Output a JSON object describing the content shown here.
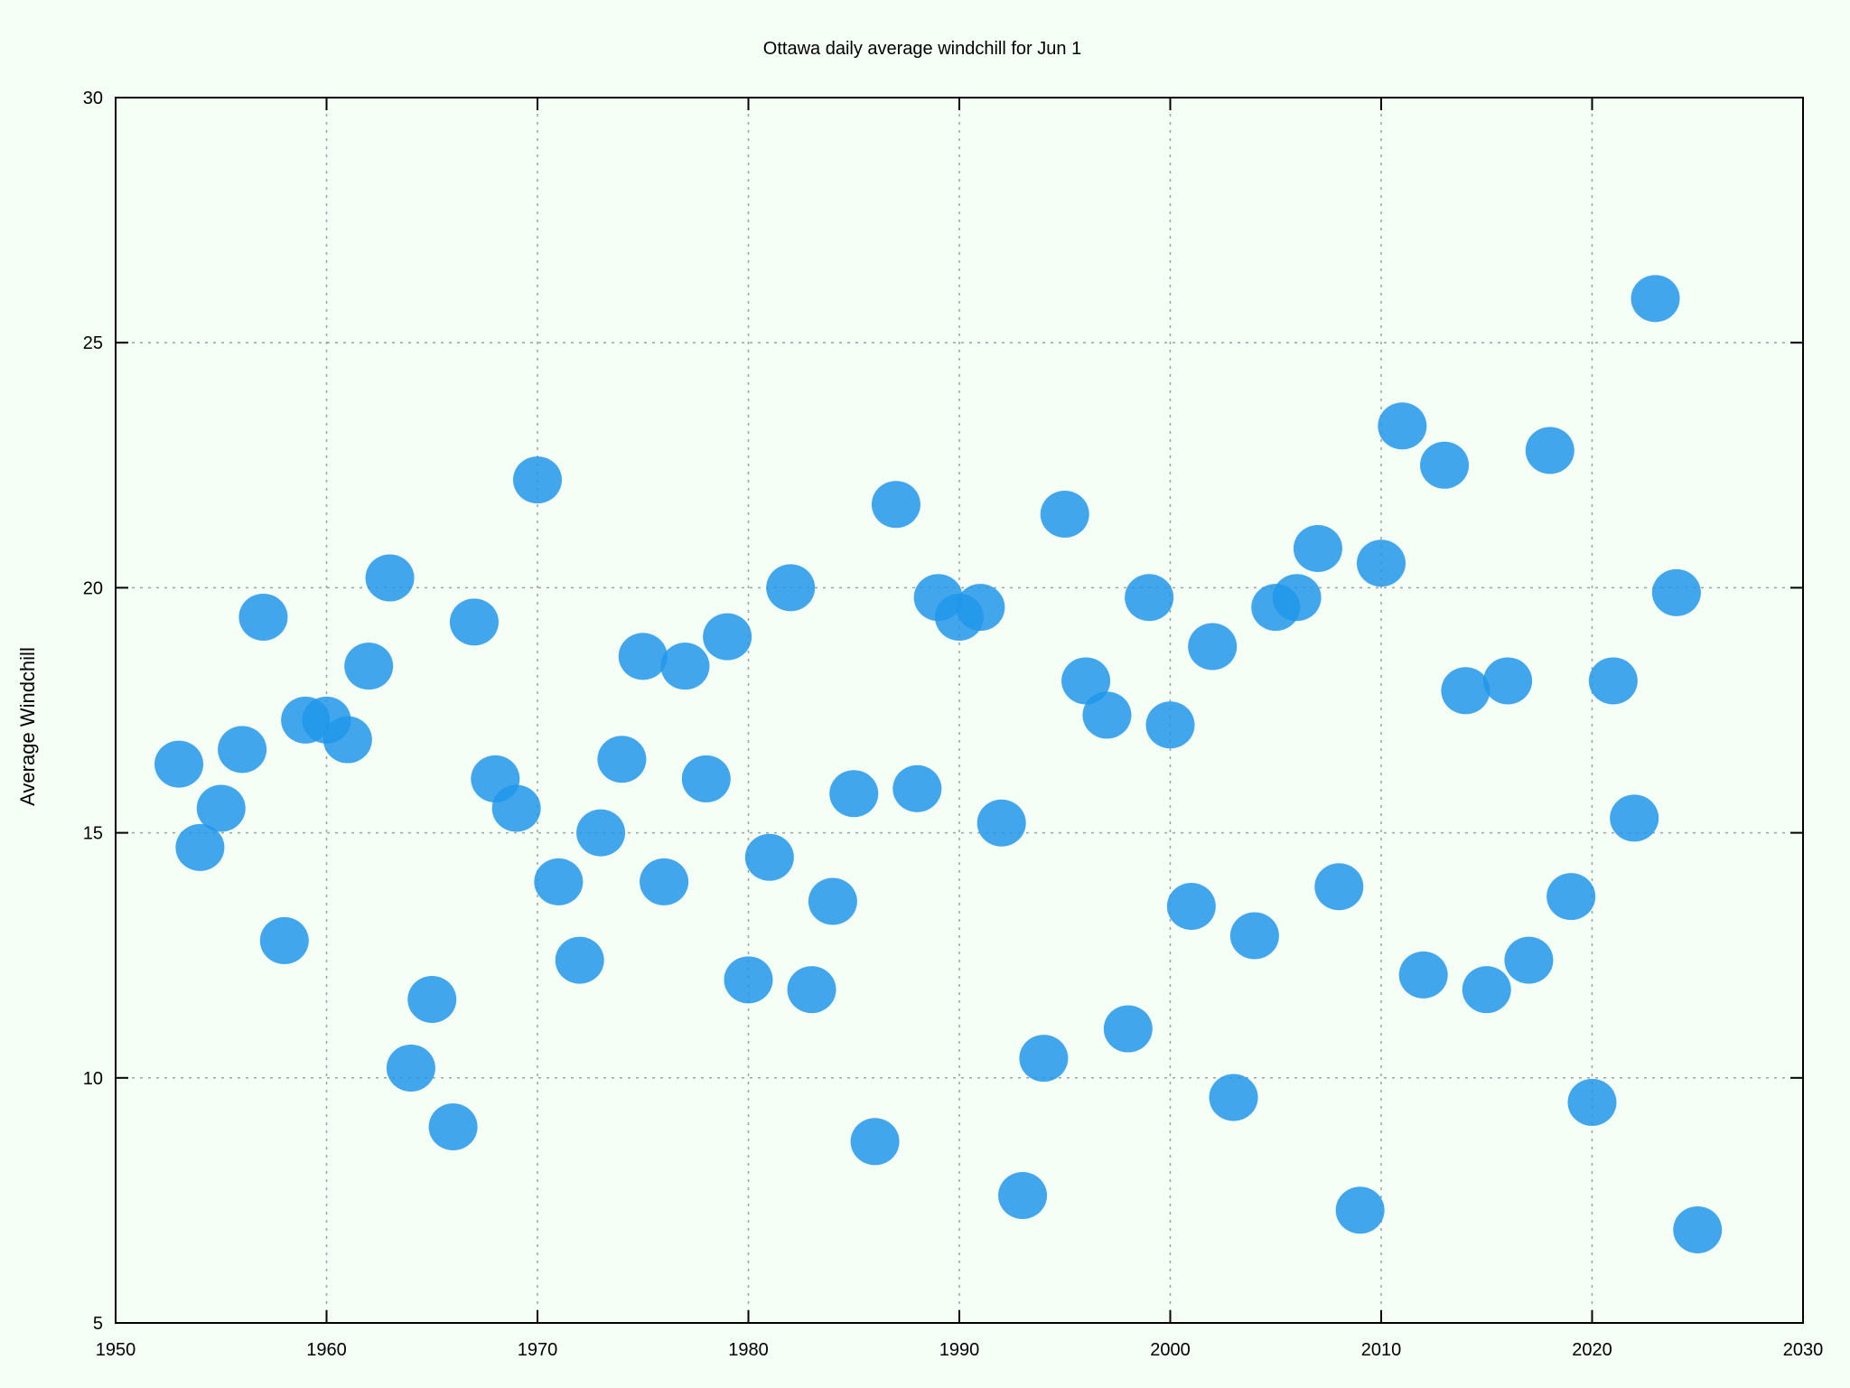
{
  "chart_data": {
    "type": "scatter",
    "title": "Ottawa daily average windchill for Jun 1",
    "xlabel": "",
    "ylabel": "Average Windchill",
    "xlim": [
      1950,
      2030
    ],
    "ylim": [
      5,
      30
    ],
    "xticks": [
      1950,
      1960,
      1970,
      1980,
      1990,
      2000,
      2010,
      2020,
      2030
    ],
    "yticks": [
      5,
      10,
      15,
      20,
      25,
      30
    ],
    "grid": true,
    "marker_color": "#2196ea",
    "background": "#f5fff5",
    "series": [
      {
        "points": [
          [
            1953,
            16.4
          ],
          [
            1954,
            14.7
          ],
          [
            1955,
            15.5
          ],
          [
            1956,
            16.7
          ],
          [
            1957,
            19.4
          ],
          [
            1958,
            12.8
          ],
          [
            1959,
            17.3
          ],
          [
            1960,
            17.3
          ],
          [
            1961,
            16.9
          ],
          [
            1962,
            18.4
          ],
          [
            1963,
            20.2
          ],
          [
            1964,
            10.2
          ],
          [
            1965,
            11.6
          ],
          [
            1966,
            9.0
          ],
          [
            1967,
            19.3
          ],
          [
            1968,
            16.1
          ],
          [
            1969,
            15.5
          ],
          [
            1970,
            22.2
          ],
          [
            1971,
            14.0
          ],
          [
            1972,
            12.4
          ],
          [
            1973,
            15.0
          ],
          [
            1974,
            16.5
          ],
          [
            1975,
            18.6
          ],
          [
            1976,
            14.0
          ],
          [
            1977,
            18.4
          ],
          [
            1978,
            16.1
          ],
          [
            1979,
            19.0
          ],
          [
            1980,
            12.0
          ],
          [
            1981,
            14.5
          ],
          [
            1982,
            20.0
          ],
          [
            1983,
            11.8
          ],
          [
            1984,
            13.6
          ],
          [
            1985,
            15.8
          ],
          [
            1986,
            8.7
          ],
          [
            1987,
            21.7
          ],
          [
            1988,
            15.9
          ],
          [
            1989,
            19.8
          ],
          [
            1990,
            19.4
          ],
          [
            1991,
            19.6
          ],
          [
            1992,
            15.2
          ],
          [
            1993,
            7.6
          ],
          [
            1994,
            10.4
          ],
          [
            1995,
            21.5
          ],
          [
            1996,
            18.1
          ],
          [
            1997,
            17.4
          ],
          [
            1998,
            11.0
          ],
          [
            1999,
            19.8
          ],
          [
            2000,
            17.2
          ],
          [
            2001,
            13.5
          ],
          [
            2002,
            18.8
          ],
          [
            2003,
            9.6
          ],
          [
            2004,
            12.9
          ],
          [
            2005,
            19.6
          ],
          [
            2006,
            19.8
          ],
          [
            2007,
            20.8
          ],
          [
            2008,
            13.9
          ],
          [
            2009,
            7.3
          ],
          [
            2010,
            20.5
          ],
          [
            2011,
            23.3
          ],
          [
            2012,
            12.1
          ],
          [
            2013,
            22.5
          ],
          [
            2014,
            17.9
          ],
          [
            2015,
            11.8
          ],
          [
            2016,
            18.1
          ],
          [
            2017,
            12.4
          ],
          [
            2018,
            22.8
          ],
          [
            2019,
            13.7
          ],
          [
            2020,
            9.5
          ],
          [
            2021,
            18.1
          ],
          [
            2022,
            15.3
          ],
          [
            2023,
            25.9
          ],
          [
            2024,
            19.9
          ],
          [
            2025,
            6.9
          ]
        ]
      }
    ]
  }
}
